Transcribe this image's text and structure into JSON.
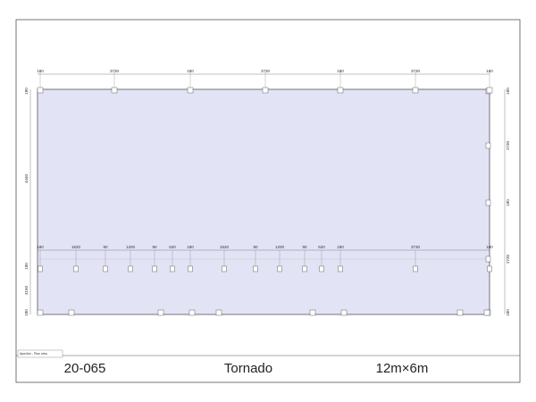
{
  "dimensions": {
    "top": [
      "180",
      "3730",
      "180",
      "3730",
      "180",
      "3730",
      "180"
    ],
    "middle": [
      "180",
      "1520",
      "90",
      "1200",
      "90",
      "620",
      "180",
      "1520",
      "90",
      "1200",
      "90",
      "620",
      "180",
      "3730",
      "180"
    ],
    "left": [
      "180",
      "4440",
      "180",
      "3150",
      "180"
    ],
    "right": [
      "180",
      "2730",
      "180",
      "2730",
      "180"
    ]
  },
  "title_block": {
    "view_label": "Apex6m - Plan view",
    "drawing_number": "20-065",
    "name": "Tornado",
    "size": "12m×6m"
  }
}
